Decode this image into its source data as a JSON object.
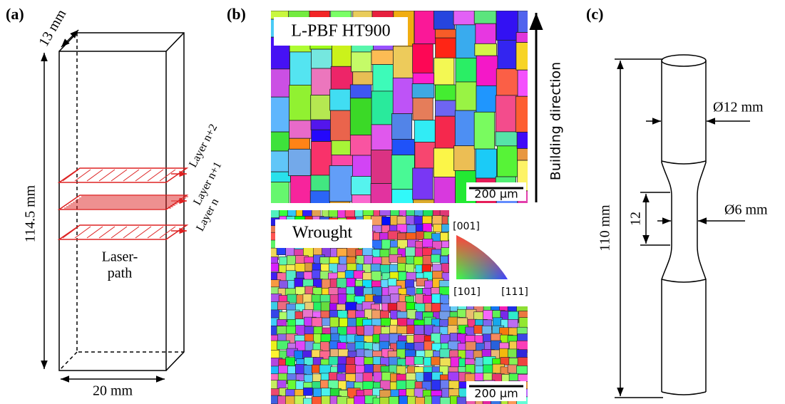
{
  "panel_a": {
    "label": "(a)",
    "depth": "13 mm",
    "height": "114.5 mm",
    "width": "20 mm",
    "layers": [
      "Layer n+2",
      "Layer n+1",
      "Layer n"
    ],
    "laser_path": [
      "Laser-",
      "path"
    ]
  },
  "panel_b": {
    "label": "(b)",
    "top_map": {
      "title": "L-PBF HT900",
      "scale_bar": "200 µm"
    },
    "building_direction": "Building direction",
    "bottom_map": {
      "title": "Wrought",
      "scale_bar": "200 µm"
    },
    "ipf_key": [
      "[001]",
      "[101]",
      "[111]"
    ]
  },
  "panel_c": {
    "label": "(c)",
    "grip_diameter": "Ø12 mm",
    "gauge_diameter": "Ø6 mm",
    "gauge_length": "12",
    "total_length": "110 mm"
  }
}
